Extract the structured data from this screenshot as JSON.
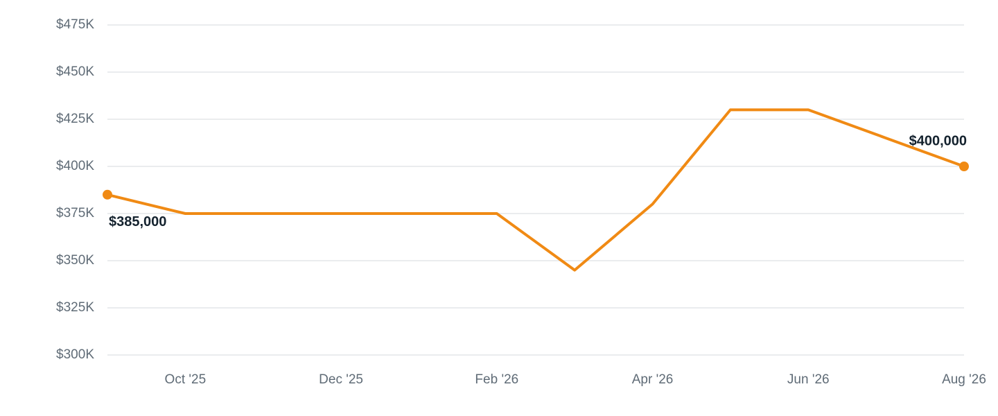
{
  "chart_data": {
    "type": "line",
    "categories": [
      null,
      "Oct '25",
      null,
      "Dec '25",
      null,
      "Feb '26",
      null,
      "Apr '26",
      null,
      "Jun '26",
      null,
      "Aug '26"
    ],
    "values": [
      385000,
      375000,
      375000,
      375000,
      375000,
      375000,
      345000,
      380000,
      430000,
      430000,
      415000,
      400000
    ],
    "value_labels": [
      "$385,000",
      null,
      null,
      null,
      null,
      null,
      null,
      null,
      null,
      null,
      null,
      "$400,000"
    ],
    "color": "#f08a14",
    "ylim": [
      300000,
      475000
    ],
    "yticks": [
      {
        "value": 300000,
        "label": "$300K"
      },
      {
        "value": 325000,
        "label": "$325K"
      },
      {
        "value": 350000,
        "label": "$350K"
      },
      {
        "value": 375000,
        "label": "$375K"
      },
      {
        "value": 400000,
        "label": "$400K"
      },
      {
        "value": 425000,
        "label": "$425K"
      },
      {
        "value": 450000,
        "label": "$450K"
      },
      {
        "value": 475000,
        "label": "$475K"
      }
    ],
    "grid": true
  }
}
